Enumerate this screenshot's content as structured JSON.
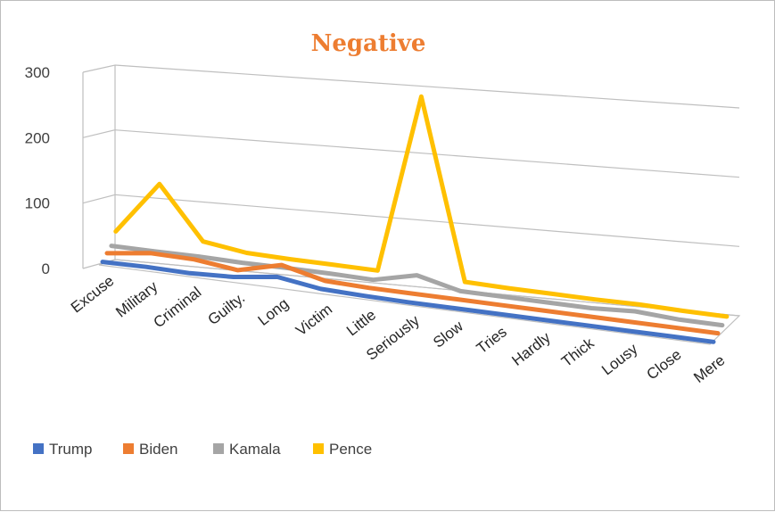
{
  "chart_data": {
    "type": "line",
    "title": "Negative",
    "xlabel": "",
    "ylabel": "",
    "ylim": [
      0,
      300
    ],
    "yticks": [
      "0",
      "100",
      "200",
      "300"
    ],
    "grid": true,
    "legend_position": "bottom-left",
    "categories": [
      "Excuse",
      "Military",
      "Criminal",
      "Guilty.",
      "Long",
      "Victim",
      "Little",
      "Seriously",
      "Slow",
      "Tries",
      "Hardly",
      "Thick",
      "Lousy",
      "Close",
      "Mere"
    ],
    "series": [
      {
        "name": "Trump",
        "color": "#4472c4",
        "values": [
          2,
          3,
          2,
          5,
          14,
          4,
          2,
          1,
          1,
          1,
          1,
          1,
          1,
          1,
          1
        ]
      },
      {
        "name": "Biden",
        "color": "#ed7d31",
        "values": [
          3,
          12,
          11,
          3,
          20,
          4,
          2,
          2,
          2,
          2,
          2,
          2,
          2,
          2,
          2
        ]
      },
      {
        "name": "Kamala",
        "color": "#a5a5a5",
        "values": [
          2,
          2,
          3,
          2,
          3,
          3,
          2,
          18,
          2,
          2,
          2,
          2,
          6,
          2,
          2
        ]
      },
      {
        "name": "Pence",
        "color": "#ffc000",
        "values": [
          12,
          95,
          14,
          5,
          4,
          4,
          4,
          285,
          4,
          3,
          3,
          3,
          4,
          3,
          3
        ]
      }
    ]
  }
}
